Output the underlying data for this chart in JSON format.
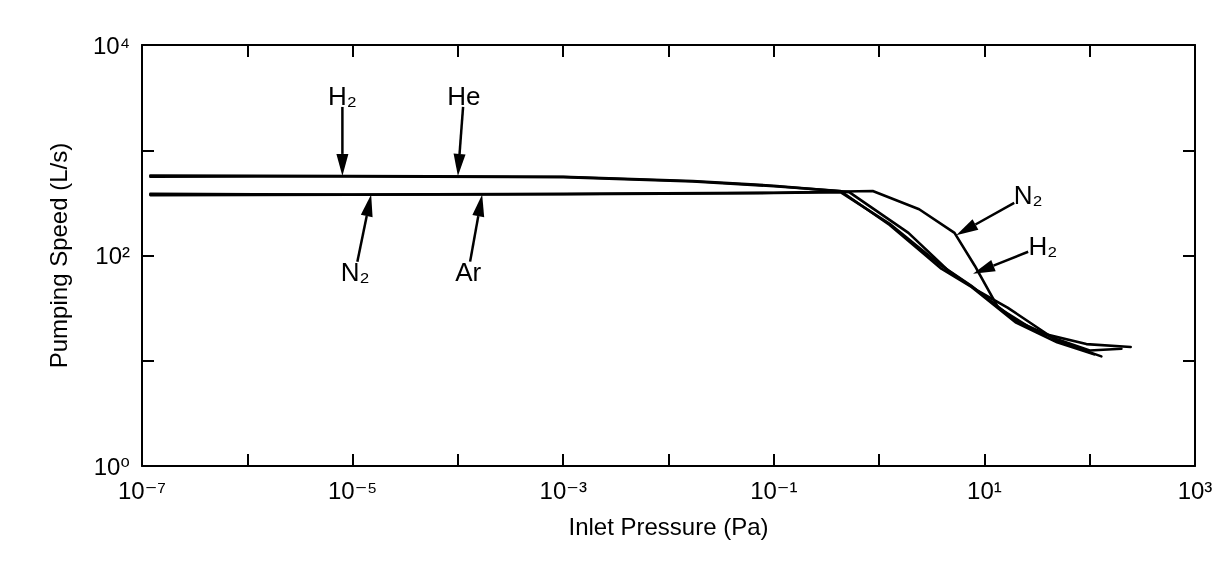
{
  "chart_data": {
    "type": "line",
    "xlabel": "Inlet Pressure (Pa)",
    "ylabel": "Pumping Speed (L/s)",
    "log": "xy",
    "grid": false,
    "marker": "none",
    "line_style": "solid",
    "xlim": [
      1e-07,
      1000
    ],
    "ylim": [
      1,
      10000
    ],
    "xticks": [
      {
        "value": 1e-07,
        "label": "10⁻⁷"
      },
      {
        "value": 1e-06,
        "label": null
      },
      {
        "value": 1e-05,
        "label": "10⁻⁵"
      },
      {
        "value": 0.0001,
        "label": null
      },
      {
        "value": 0.001,
        "label": "10⁻³"
      },
      {
        "value": 0.01,
        "label": null
      },
      {
        "value": 0.1,
        "label": "10⁻¹"
      },
      {
        "value": 1,
        "label": null
      },
      {
        "value": 10,
        "label": "10¹"
      },
      {
        "value": 100,
        "label": null
      },
      {
        "value": 1000,
        "label": "10³"
      }
    ],
    "yticks": [
      {
        "value": 1,
        "label": "10⁰"
      },
      {
        "value": 10,
        "label": null
      },
      {
        "value": 100,
        "label": "10²"
      },
      {
        "value": 1000,
        "label": null
      },
      {
        "value": 10000,
        "label": "10⁴"
      }
    ],
    "series": [
      {
        "color": "#000000",
        "x": [
          1.2e-07,
          1e-05,
          0.001,
          0.017,
          0.1,
          0.52,
          1.9,
          4.6,
          8.7,
          16.6,
          49,
          129
        ],
        "values": [
          575,
          570,
          560,
          510,
          460,
          400,
          164,
          71,
          46,
          32,
          15.5,
          11
        ]
      },
      {
        "color": "#000000",
        "x": [
          1.2e-07,
          1e-05,
          0.001,
          0.017,
          0.1,
          0.43,
          1.26,
          3.9,
          7.4,
          20,
          49,
          110
        ],
        "values": [
          560,
          565,
          555,
          505,
          455,
          410,
          195,
          75,
          51,
          23,
          15,
          11.5
        ]
      },
      {
        "color": "#000000",
        "x": [
          1.2e-07,
          1e-05,
          0.001,
          0.1,
          0.87,
          2.4,
          5.2,
          8.1,
          13.5,
          32,
          93,
          245
        ],
        "values": [
          385,
          380,
          385,
          395,
          410,
          275,
          164,
          80,
          32,
          18.6,
          14.4,
          13.5
        ]
      },
      {
        "color": "#000000",
        "x": [
          1.2e-07,
          1e-05,
          0.001,
          0.1,
          0.43,
          1.26,
          3.9,
          7.4,
          20,
          49,
          100,
          200
        ],
        "values": [
          375,
          378,
          382,
          392,
          400,
          200,
          80,
          52,
          24,
          16,
          12.5,
          13
        ]
      }
    ],
    "annotations": [
      {
        "text": "H₂",
        "x": 8e-06,
        "y": 570
      },
      {
        "text": "He",
        "x": 0.0001,
        "y": 570
      },
      {
        "text": "N₂",
        "x": 1.5e-05,
        "y": 380
      },
      {
        "text": "Ar",
        "x": 0.00017,
        "y": 380
      },
      {
        "text": "N₂",
        "x": 5.4,
        "y": 156
      },
      {
        "text": "H₂",
        "x": 7.8,
        "y": 67
      }
    ]
  }
}
